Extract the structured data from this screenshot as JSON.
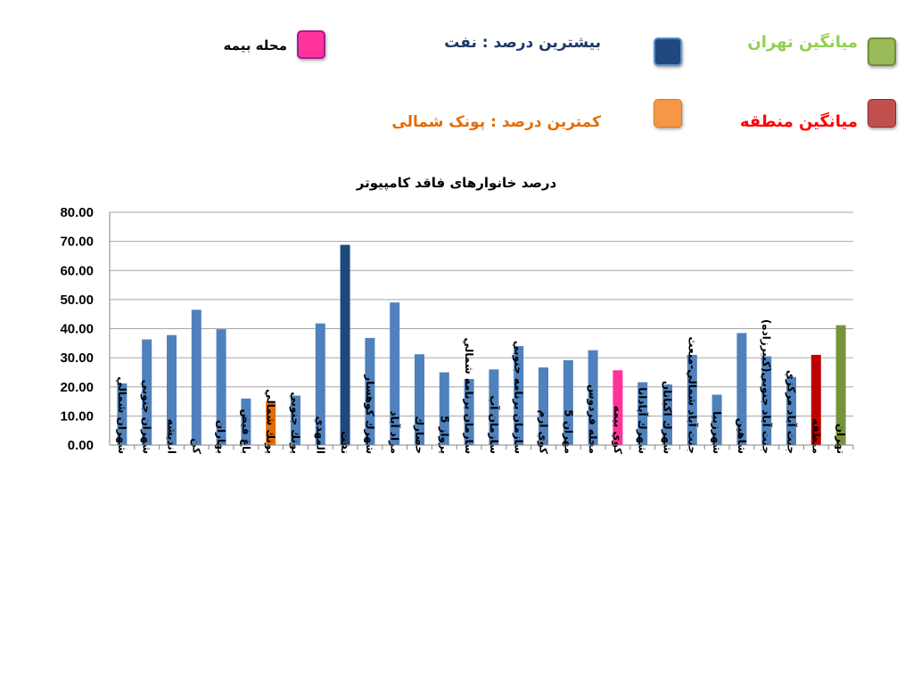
{
  "legend": {
    "bime": {
      "label": "محله بیمه",
      "color": "#ff3399"
    },
    "highest": {
      "label": "بیشترین درصد   :  نفت",
      "color": "#1f497d"
    },
    "tehran_avg": {
      "label": "میانگین  تهران",
      "color": "#9bbb59"
    },
    "lowest": {
      "label": "کمترین درصد  : پونک شمالی",
      "color": "#f79646"
    },
    "region_avg": {
      "label": "میانگین منطقه",
      "color": "#c0504d"
    }
  },
  "chart_data": {
    "type": "bar",
    "title": "درصد خانوارهای فاقد کامپیوتر",
    "ylim": [
      0,
      80
    ],
    "ytick_step": 10,
    "ytick_labels": [
      "0.00",
      "10.00",
      "20.00",
      "30.00",
      "40.00",
      "50.00",
      "60.00",
      "70.00",
      "80.00"
    ],
    "grid": true,
    "default_color": "#4f81bd",
    "categories": [
      "شهران شمالي",
      "شهران جنوبي",
      "انديشه",
      "كن",
      "بهاران",
      "باغ فيض",
      "پونك شمالي",
      "پونك جنوبي",
      "المهدي",
      "نفت",
      "شهرك كوهسار",
      "مراد آباد",
      "حصارك",
      "پرواز 5",
      "سازمان برنامه شمالي",
      "سازمان آب",
      "سازمان برنامه جنوبي",
      "كوي ارم",
      "مهران 5",
      "محله فردوس",
      "كوي بيمه",
      "شهرك آپادانا",
      "شهرك اكباتان",
      "جنت آباد شمالي-مبعث",
      "شهرزيبا",
      "شاهين",
      "جنت آباد جنوبي(كبيرزاده)",
      "جنت آباد مركزي",
      "منطقه",
      "تهران"
    ],
    "values": [
      21.2,
      36.3,
      37.8,
      46.5,
      39.8,
      16.0,
      15.0,
      17.0,
      41.8,
      68.8,
      36.8,
      49.0,
      31.2,
      25.0,
      22.7,
      26.0,
      34.0,
      26.7,
      29.2,
      32.6,
      25.7,
      21.6,
      20.8,
      31.0,
      17.3,
      38.5,
      30.5,
      23.4,
      31.0,
      41.2
    ],
    "colors": {
      "6": "#e36c09",
      "9": "#1f497d",
      "20": "#ff3399",
      "28": "#c00000",
      "29": "#77933c"
    }
  }
}
